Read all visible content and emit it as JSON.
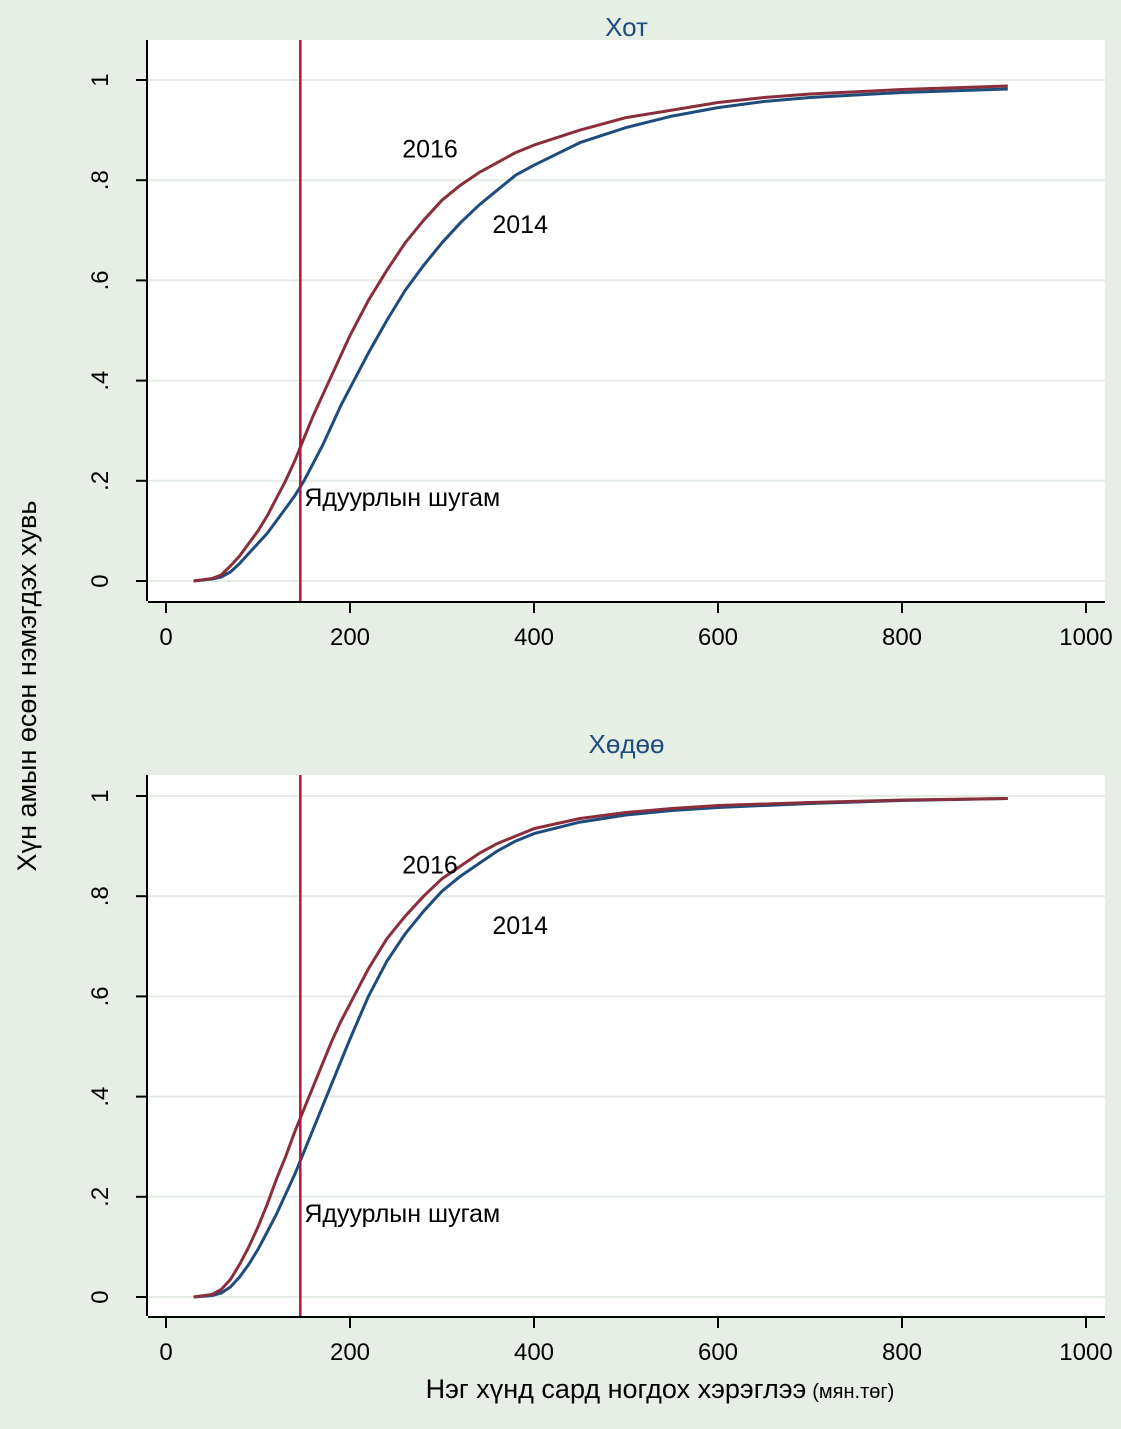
{
  "figure": {
    "ylabel": "Хүн амын өсөн нэмэгдэх хувь",
    "xlabel": "Нэг хүнд сард ногдох хэрэглээ",
    "xlabel_unit": "(мян.төг)"
  },
  "colors": {
    "background": "#e6efe4",
    "plot_area": "#ffffff",
    "grid": "#e4ece4",
    "title": "#1e4c7c",
    "series_2014": "#1e4c7c",
    "series_2016": "#8b2e3c",
    "poverty_line": "#b0173a"
  },
  "chart_data": [
    {
      "type": "line",
      "title": "Хот",
      "xlim": [
        0,
        1000
      ],
      "ylim": [
        0,
        1
      ],
      "xticks": [
        0,
        200,
        400,
        600,
        800,
        1000
      ],
      "xtick_labels": [
        "0",
        "200",
        "400",
        "600",
        "800",
        "1000"
      ],
      "yticks": [
        0,
        0.2,
        0.4,
        0.6,
        0.8,
        1
      ],
      "ytick_labels": [
        "0",
        ".2",
        ".4",
        ".6",
        ".8",
        "1"
      ],
      "grid": true,
      "poverty_line": {
        "x": 146,
        "label": "Ядуурлын шугам"
      },
      "series": [
        {
          "name": "2016",
          "x": [
            30,
            50,
            60,
            70,
            80,
            90,
            100,
            110,
            120,
            130,
            140,
            150,
            160,
            170,
            180,
            190,
            200,
            220,
            240,
            260,
            280,
            300,
            320,
            340,
            360,
            380,
            400,
            450,
            500,
            550,
            600,
            650,
            700,
            800,
            915
          ],
          "y": [
            0.0,
            0.005,
            0.012,
            0.03,
            0.05,
            0.075,
            0.1,
            0.13,
            0.165,
            0.2,
            0.24,
            0.285,
            0.33,
            0.37,
            0.41,
            0.45,
            0.49,
            0.56,
            0.62,
            0.675,
            0.72,
            0.76,
            0.79,
            0.815,
            0.835,
            0.855,
            0.87,
            0.9,
            0.925,
            0.94,
            0.955,
            0.965,
            0.972,
            0.981,
            0.988
          ]
        },
        {
          "name": "2014",
          "x": [
            30,
            50,
            60,
            70,
            80,
            90,
            100,
            110,
            120,
            130,
            140,
            150,
            160,
            170,
            180,
            190,
            200,
            220,
            240,
            260,
            280,
            300,
            320,
            340,
            360,
            380,
            400,
            450,
            500,
            550,
            600,
            650,
            700,
            800,
            915
          ],
          "y": [
            0.0,
            0.004,
            0.008,
            0.018,
            0.035,
            0.055,
            0.075,
            0.095,
            0.12,
            0.145,
            0.17,
            0.2,
            0.235,
            0.27,
            0.31,
            0.35,
            0.385,
            0.455,
            0.52,
            0.58,
            0.63,
            0.675,
            0.715,
            0.75,
            0.78,
            0.81,
            0.83,
            0.875,
            0.905,
            0.928,
            0.945,
            0.957,
            0.965,
            0.975,
            0.982
          ]
        }
      ],
      "annotations": [
        {
          "text": "2016",
          "x": 287,
          "y": 0.845
        },
        {
          "text": "2014",
          "x": 385,
          "y": 0.695
        }
      ]
    },
    {
      "type": "line",
      "title": "Хөдөө",
      "xlim": [
        0,
        1000
      ],
      "ylim": [
        0,
        1
      ],
      "xticks": [
        0,
        200,
        400,
        600,
        800,
        1000
      ],
      "xtick_labels": [
        "0",
        "200",
        "400",
        "600",
        "800",
        "1000"
      ],
      "yticks": [
        0,
        0.2,
        0.4,
        0.6,
        0.8,
        1
      ],
      "ytick_labels": [
        "0",
        ".2",
        ".4",
        ".6",
        ".8",
        "1"
      ],
      "grid": true,
      "poverty_line": {
        "x": 146,
        "label": "Ядуурлын шугам"
      },
      "series": [
        {
          "name": "2016",
          "x": [
            30,
            50,
            60,
            70,
            80,
            90,
            100,
            110,
            120,
            130,
            140,
            150,
            160,
            170,
            180,
            190,
            200,
            220,
            240,
            260,
            280,
            300,
            320,
            340,
            360,
            380,
            400,
            450,
            500,
            550,
            600,
            700,
            800,
            915
          ],
          "y": [
            0.0,
            0.005,
            0.015,
            0.035,
            0.065,
            0.1,
            0.14,
            0.185,
            0.235,
            0.28,
            0.33,
            0.375,
            0.42,
            0.465,
            0.51,
            0.55,
            0.585,
            0.655,
            0.715,
            0.76,
            0.8,
            0.835,
            0.86,
            0.885,
            0.905,
            0.92,
            0.935,
            0.955,
            0.967,
            0.975,
            0.981,
            0.987,
            0.992,
            0.995
          ]
        },
        {
          "name": "2014",
          "x": [
            30,
            50,
            60,
            70,
            80,
            90,
            100,
            110,
            120,
            130,
            140,
            150,
            160,
            170,
            180,
            190,
            200,
            220,
            240,
            260,
            280,
            300,
            320,
            340,
            360,
            380,
            400,
            450,
            500,
            550,
            600,
            700,
            800,
            915
          ],
          "y": [
            0.0,
            0.003,
            0.008,
            0.02,
            0.04,
            0.065,
            0.095,
            0.13,
            0.165,
            0.205,
            0.245,
            0.29,
            0.335,
            0.38,
            0.425,
            0.47,
            0.515,
            0.6,
            0.67,
            0.725,
            0.77,
            0.81,
            0.84,
            0.865,
            0.89,
            0.91,
            0.925,
            0.948,
            0.962,
            0.971,
            0.977,
            0.985,
            0.991,
            0.995
          ]
        }
      ],
      "annotations": [
        {
          "text": "2016",
          "x": 287,
          "y": 0.845
        },
        {
          "text": "2014",
          "x": 385,
          "y": 0.725
        }
      ]
    }
  ]
}
